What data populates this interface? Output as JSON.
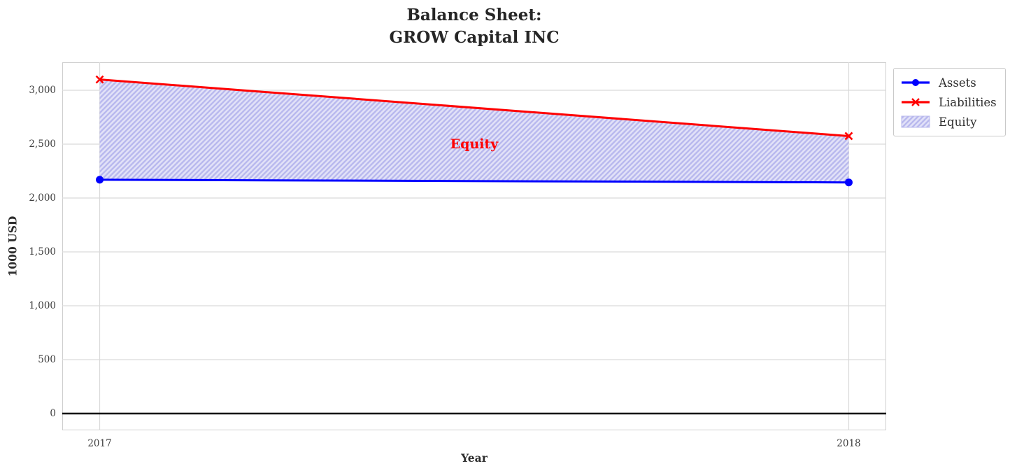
{
  "chart_data": {
    "type": "line",
    "title": "Balance Sheet:\nGROW Capital INC",
    "title_lines": [
      "Balance Sheet:",
      "GROW Capital INC"
    ],
    "xlabel": "Year",
    "ylabel": "1000 USD",
    "x": [
      2017,
      2018
    ],
    "series": [
      {
        "name": "Liabilities",
        "values": [
          3100,
          2575
        ],
        "color": "#ff0000",
        "marker": "x",
        "linewidth": 3
      },
      {
        "name": "Assets",
        "values": [
          2170,
          2145
        ],
        "color": "#0000ff",
        "marker": "circle",
        "linewidth": 3
      }
    ],
    "fill_between": {
      "label": "Equity",
      "upper": "Liabilities",
      "lower": "Assets",
      "hatch": "//",
      "fill_color": "#e2e2f8",
      "hatch_color": "#b9b9ee"
    },
    "annotation": {
      "text": "Equity",
      "x": 2017.5,
      "y": 2500,
      "color": "#ff0000"
    },
    "xlim": [
      2016.95,
      2018.05
    ],
    "ylim": [
      -156,
      3260
    ],
    "xticks": [
      2017,
      2018
    ],
    "xtick_labels": [
      "2017",
      "2018"
    ],
    "yticks": [
      0,
      500,
      1000,
      1500,
      2000,
      2500,
      3000
    ],
    "ytick_labels": [
      "0",
      "500",
      "1,000",
      "1,500",
      "2,000",
      "2,500",
      "3,000"
    ],
    "zero_line": 0,
    "grid": true,
    "legend": {
      "position": "outside-top-right",
      "entries": [
        {
          "label": "Assets",
          "swatch": "line-circle",
          "color": "#0000ff"
        },
        {
          "label": "Liabilities",
          "swatch": "line-x",
          "color": "#ff0000"
        },
        {
          "label": "Equity",
          "swatch": "hatch-patch",
          "color": "#b9b9ee"
        }
      ]
    }
  },
  "colors": {
    "grid": "#d9d9d9",
    "spine": "#cfcfcf",
    "tick_text": "#3d3d3d",
    "title_text": "#262626",
    "zero_line": "#000000",
    "background": "#ffffff"
  }
}
